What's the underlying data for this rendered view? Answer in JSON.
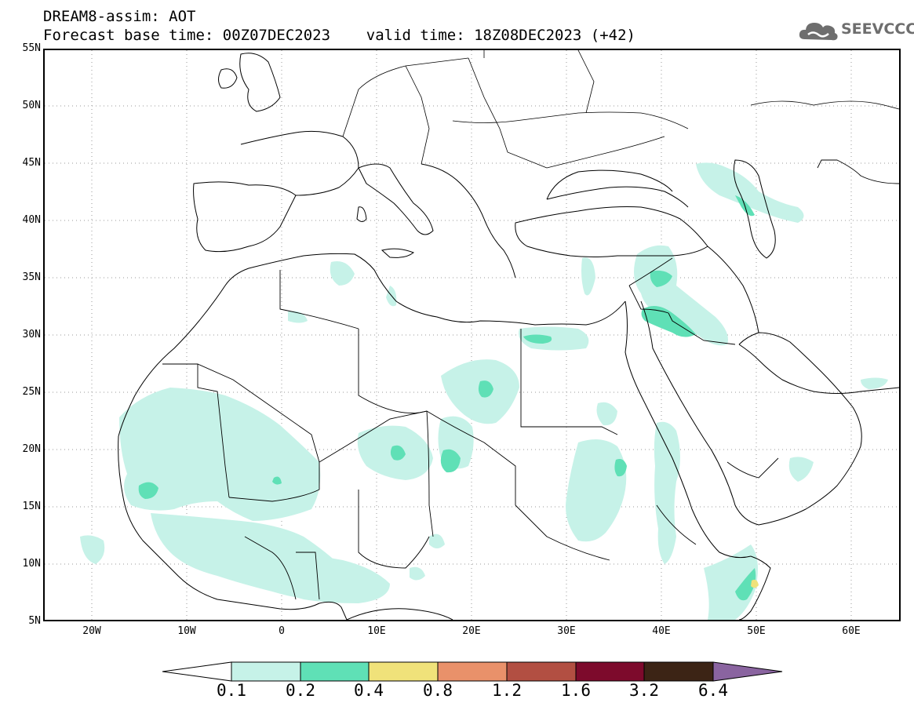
{
  "title": {
    "line1": "DREAM8-assim: AOT",
    "line2": "Forecast base time: 00Z07DEC2023    valid time: 18Z08DEC2023 (+42)"
  },
  "logo": {
    "text": "SEEVCCC",
    "icon": "cloud-icon"
  },
  "axes": {
    "lat_labels": [
      "55N",
      "50N",
      "45N",
      "40N",
      "35N",
      "30N",
      "25N",
      "20N",
      "15N",
      "10N",
      "5N"
    ],
    "lon_labels": [
      "20W",
      "10W",
      "0",
      "10E",
      "20E",
      "30E",
      "40E",
      "50E",
      "60E"
    ],
    "lat_range": [
      5,
      55
    ],
    "lon_range": [
      -25,
      65
    ],
    "grid": "dotted"
  },
  "colorbar": {
    "labels": [
      "0.1",
      "0.2",
      "0.4",
      "0.8",
      "1.2",
      "1.6",
      "3.2",
      "6.4"
    ],
    "colors": [
      "#c6f2e8",
      "#5fe0b6",
      "#f0e27a",
      "#e9916a",
      "#b24f42",
      "#7d0a2c",
      "#3c2415",
      "#8a64a0"
    ]
  }
}
